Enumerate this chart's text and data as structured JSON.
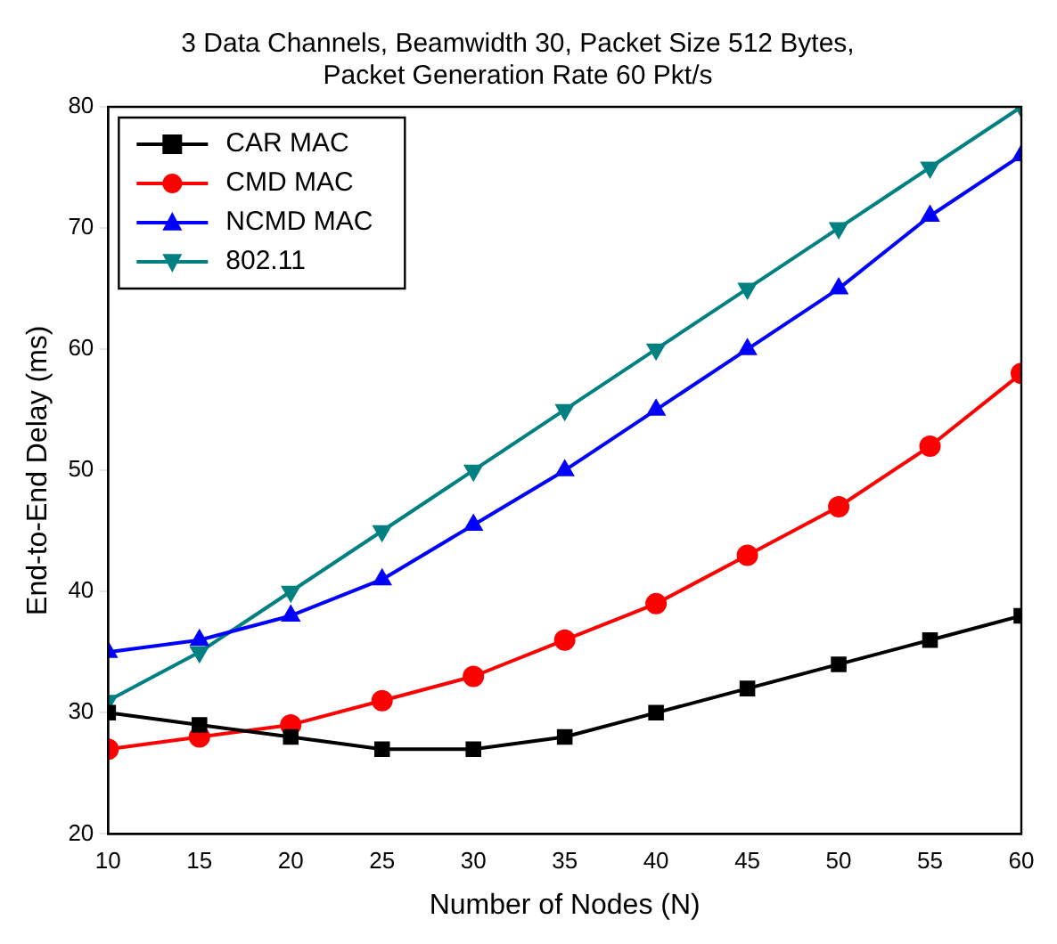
{
  "chart_data": {
    "type": "line",
    "title": "3 Data Channels, Beamwidth 30, Packet Size 512 Bytes,\nPacket Generation Rate 60 Pkt/s",
    "xlabel": "Number of Nodes (N)",
    "ylabel": "End-to-End Delay (ms)",
    "x": [
      10,
      15,
      20,
      25,
      30,
      35,
      40,
      45,
      50,
      55,
      60
    ],
    "series": [
      {
        "name": "CAR MAC",
        "color": "#000000",
        "marker": "square",
        "values": [
          30,
          29,
          28,
          27,
          27,
          28,
          30,
          32,
          34,
          36,
          38
        ]
      },
      {
        "name": "CMD MAC",
        "color": "#ff0000",
        "marker": "circle",
        "values": [
          27,
          28,
          29,
          31,
          33,
          36,
          39,
          43,
          47,
          52,
          58
        ]
      },
      {
        "name": "NCMD MAC",
        "color": "#0000ff",
        "marker": "triangle",
        "values": [
          35,
          36,
          38,
          41,
          45.5,
          50,
          55,
          60,
          65,
          71,
          76
        ]
      },
      {
        "name": "802.11",
        "color": "#008080",
        "marker": "triangle",
        "values": [
          31,
          35,
          40,
          45,
          50,
          55,
          60,
          65,
          70,
          75,
          80
        ]
      }
    ],
    "xlim": [
      10,
      60
    ],
    "xticks": [
      10,
      15,
      20,
      25,
      30,
      35,
      40,
      45,
      50,
      55,
      60
    ],
    "ylim": [
      20,
      80
    ],
    "yticks": [
      20,
      30,
      40,
      50,
      60,
      70,
      80
    ],
    "grid": false,
    "legend": "top left",
    "line_style": "solid"
  }
}
